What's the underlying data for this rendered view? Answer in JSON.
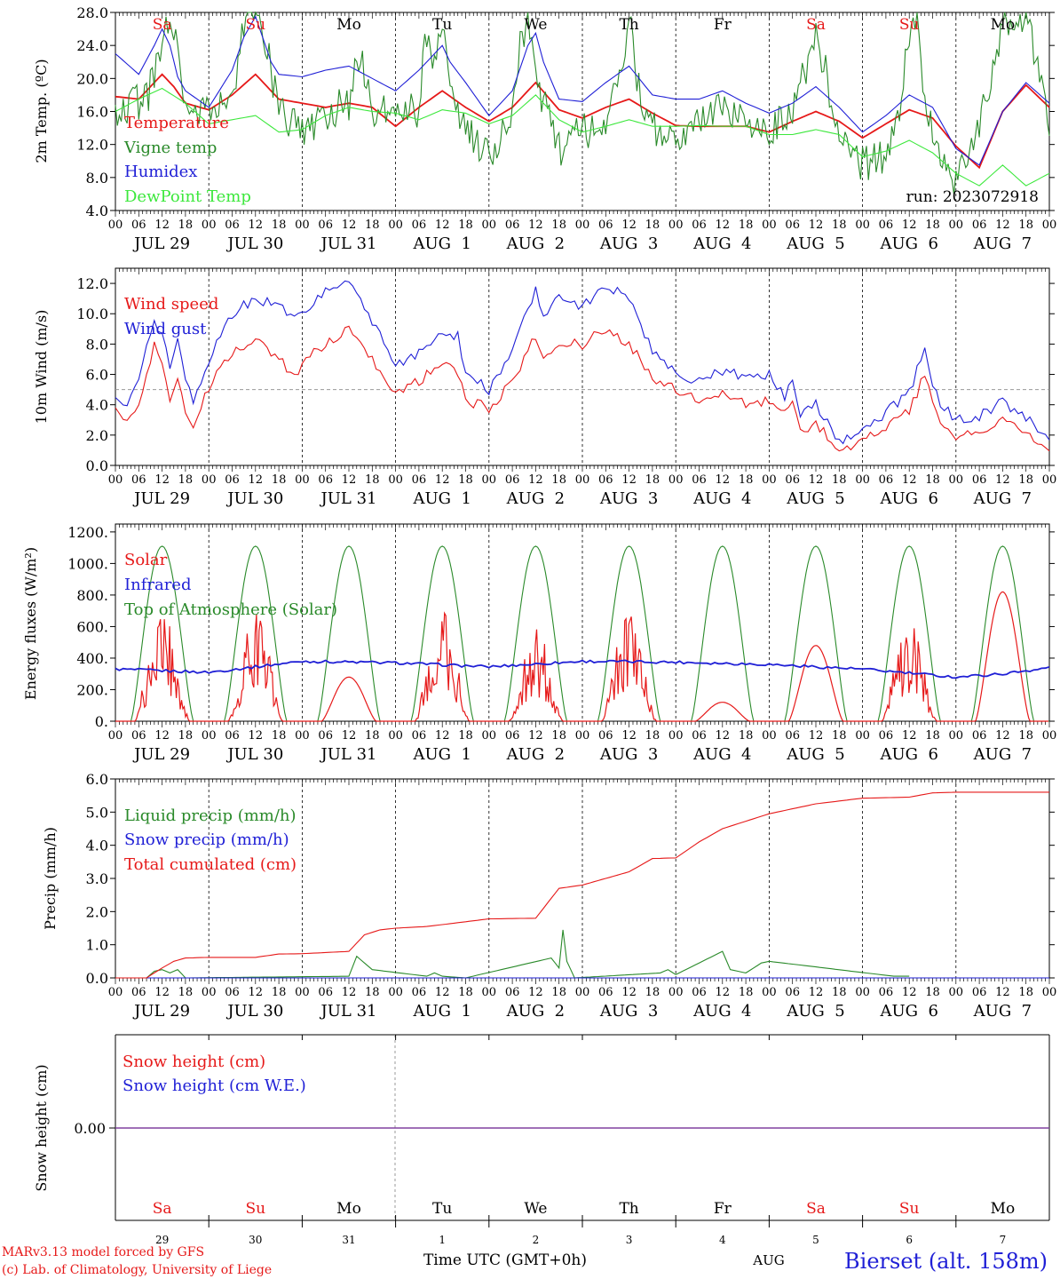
{
  "days": [
    "JUL 29",
    "JUL 30",
    "JUL 31",
    "AUG  1",
    "AUG  2",
    "AUG  3",
    "AUG  4",
    "AUG  5",
    "AUG  6",
    "AUG  7"
  ],
  "weekdays": [
    "Sa",
    "Su",
    "Mo",
    "Tu",
    "We",
    "Th",
    "Fr",
    "Sa",
    "Su",
    "Mo"
  ],
  "day_numbers": [
    "29",
    "30",
    "31",
    "1",
    "2",
    "3",
    "4",
    "5",
    "6",
    "7"
  ],
  "hour_ticks": [
    "00",
    "06",
    "12",
    "18"
  ],
  "hour_end": "00",
  "run_label": "run: 2023072918",
  "footer": {
    "credit_1": "MARv3.13 model forced by GFS",
    "credit_2": "(c) Lab. of Climatology, University of Liege",
    "xlabel": "Time UTC (GMT+0h)",
    "month": "AUG",
    "station": "Bierset (alt. 158m)"
  },
  "colors": {
    "red": "#e61919",
    "green": "#2a8a2a",
    "blue": "#1f1fd6",
    "light_green": "#3ce83c",
    "snow": "#8040a0"
  },
  "chart_data": [
    {
      "type": "line",
      "ylabel": "2m Temp. (ºC)",
      "ylim": [
        4,
        28
      ],
      "yticks": [
        "4.0",
        "8.0",
        "12.0",
        "16.0",
        "20.0",
        "24.0",
        "28.0"
      ],
      "x_unit": "hours since JUL 29 00 UTC",
      "series": [
        {
          "name": "Temperature",
          "x": [
            0,
            6,
            12,
            15,
            18,
            24,
            30,
            36,
            42,
            48,
            54,
            60,
            66,
            72,
            78,
            84,
            90,
            96,
            102,
            108,
            114,
            120,
            126,
            132,
            138,
            144,
            150,
            156,
            162,
            168,
            174,
            180,
            186,
            192,
            198,
            204,
            210,
            216,
            222,
            228,
            234,
            240
          ],
          "values": [
            17.8,
            17.5,
            20.5,
            19,
            17,
            16.2,
            18,
            20.5,
            17.5,
            17,
            16.5,
            17,
            16.5,
            14.2,
            16.5,
            18.5,
            16.5,
            14.8,
            16.5,
            19.5,
            16.2,
            15.2,
            16.5,
            17.5,
            15.8,
            14.3,
            14.2,
            14.2,
            14.2,
            13.5,
            14.8,
            16,
            14.8,
            12.8,
            14.5,
            16.2,
            15.2,
            11.8,
            9.2,
            16,
            19.2,
            16.5
          ]
        },
        {
          "name": "Vigne temp",
          "x": [
            0,
            8,
            11,
            13,
            14,
            16,
            18,
            24,
            30,
            33,
            35,
            38,
            42,
            48,
            54,
            60,
            62,
            64,
            66,
            72,
            78,
            80,
            82,
            84,
            86,
            88,
            90,
            96,
            102,
            104,
            106,
            108,
            110,
            114,
            120,
            126,
            130,
            132,
            134,
            136,
            138,
            144,
            150,
            156,
            162,
            168,
            174,
            178,
            180,
            182,
            186,
            192,
            198,
            202,
            204,
            206,
            208,
            212,
            216,
            222,
            228,
            234,
            240
          ],
          "values": [
            16.2,
            17.5,
            22,
            26,
            27,
            24,
            16.2,
            16,
            18,
            26,
            29,
            26,
            15.8,
            13.5,
            15.8,
            17,
            22,
            21,
            16,
            15.5,
            16.2,
            26,
            22,
            28,
            18,
            16.2,
            14,
            10.2,
            15.8,
            24,
            27,
            20,
            17,
            11.5,
            13.5,
            14.5,
            20,
            28,
            20,
            16,
            14,
            13,
            14.5,
            16.5,
            14.8,
            13.5,
            15.8,
            22,
            25,
            22,
            13,
            9.5,
            10.5,
            17,
            26,
            27,
            17,
            11.5,
            7,
            14,
            27,
            28,
            14.5
          ]
        },
        {
          "name": "Humidex",
          "x": [
            0,
            6,
            10,
            12,
            14,
            16,
            18,
            24,
            30,
            33,
            36,
            40,
            42,
            48,
            54,
            60,
            66,
            72,
            78,
            82,
            84,
            86,
            90,
            96,
            102,
            106,
            108,
            110,
            114,
            120,
            126,
            132,
            138,
            144,
            150,
            156,
            162,
            168,
            174,
            180,
            186,
            192,
            198,
            204,
            210,
            216,
            222,
            228,
            234,
            240
          ],
          "values": [
            23,
            20.5,
            24,
            26,
            24,
            20.2,
            18.5,
            16.5,
            21,
            25,
            27.5,
            22,
            20.5,
            20.2,
            21,
            21.5,
            20,
            18.5,
            21,
            23,
            24,
            22,
            19.5,
            15.5,
            18.5,
            24,
            25.5,
            22,
            17.5,
            17.2,
            19.5,
            21.5,
            18,
            17.5,
            17.5,
            18.5,
            17,
            15.8,
            17,
            19,
            16.5,
            13.5,
            15.5,
            18,
            16.5,
            11.5,
            9.5,
            16,
            19.5,
            17
          ]
        },
        {
          "name": "DewPoint Temp",
          "x": [
            0,
            6,
            12,
            18,
            24,
            30,
            36,
            42,
            48,
            54,
            60,
            66,
            72,
            78,
            84,
            90,
            96,
            102,
            108,
            114,
            120,
            126,
            132,
            138,
            144,
            150,
            156,
            162,
            168,
            174,
            180,
            186,
            192,
            198,
            204,
            210,
            216,
            222,
            228,
            234,
            240
          ],
          "values": [
            16,
            17.5,
            18.8,
            17,
            14.5,
            15,
            15.5,
            13.5,
            13.8,
            15.5,
            16.5,
            16,
            15.8,
            15,
            16.2,
            15.8,
            14.5,
            15.5,
            18,
            15,
            13.5,
            14.2,
            15,
            14.2,
            14.2,
            14.3,
            14.2,
            14.2,
            13.2,
            13.2,
            13.8,
            13.2,
            10.5,
            11.2,
            12.5,
            11,
            8.5,
            7,
            9.5,
            7,
            8.5
          ]
        }
      ]
    },
    {
      "type": "line",
      "ylabel": "10m Wind (m/s)",
      "ylim": [
        0,
        13
      ],
      "yticks": [
        "0.0",
        "2.0",
        "4.0",
        "6.0",
        "8.0",
        "10.0",
        "12.0"
      ],
      "reference_line": 5,
      "series": [
        {
          "name": "Wind speed",
          "x": [
            0,
            3,
            6,
            10,
            12,
            14,
            16,
            18,
            20,
            24,
            30,
            36,
            42,
            46,
            48,
            54,
            60,
            66,
            70,
            72,
            78,
            84,
            88,
            90,
            96,
            102,
            108,
            110,
            114,
            120,
            126,
            132,
            138,
            144,
            150,
            156,
            162,
            168,
            172,
            174,
            176,
            180,
            186,
            192,
            198,
            204,
            208,
            210,
            212,
            216,
            222,
            228,
            234,
            240
          ],
          "values": [
            3.5,
            2.8,
            4.2,
            7.8,
            6.5,
            4.5,
            5.8,
            3.8,
            2.8,
            5.2,
            7.5,
            8.2,
            7,
            5.8,
            6.8,
            8,
            9,
            7,
            5.5,
            4.8,
            5.5,
            7,
            6,
            4.2,
            3.8,
            5.5,
            8.5,
            7.2,
            8,
            8,
            9,
            8,
            5.8,
            5,
            4.2,
            4.8,
            4,
            4.2,
            3.5,
            4.2,
            2.2,
            2.8,
            1,
            1.5,
            2.6,
            3.5,
            6,
            4,
            3,
            2,
            2.2,
            3.2,
            2.2,
            1
          ]
        },
        {
          "name": "Wind gust",
          "x": [
            0,
            3,
            6,
            10,
            12,
            14,
            16,
            18,
            20,
            24,
            30,
            36,
            42,
            46,
            48,
            54,
            60,
            66,
            70,
            72,
            78,
            84,
            88,
            90,
            96,
            102,
            108,
            110,
            114,
            120,
            126,
            132,
            138,
            144,
            150,
            156,
            162,
            168,
            172,
            174,
            176,
            180,
            186,
            192,
            198,
            204,
            208,
            210,
            212,
            216,
            222,
            228,
            234,
            240
          ],
          "values": [
            4.5,
            3.8,
            5.5,
            9.8,
            8.5,
            6.5,
            8.5,
            5.5,
            4.2,
            7,
            10,
            11,
            10.5,
            9.5,
            10,
            11.5,
            12,
            9.5,
            7.5,
            6.5,
            7.5,
            9,
            8.5,
            6,
            5,
            7.5,
            11.5,
            10,
            11,
            10.5,
            11.8,
            11,
            7.5,
            6.2,
            5.5,
            6.2,
            5.8,
            6,
            4.5,
            5.5,
            3.2,
            4,
            1.5,
            2.2,
            3.5,
            4.8,
            7.8,
            5.5,
            4,
            3,
            3.2,
            4.2,
            3.2,
            1.5
          ]
        }
      ]
    },
    {
      "type": "line",
      "ylabel": "Energy fluxes (W/m²)",
      "ylim": [
        0,
        1250
      ],
      "yticks": [
        "0.",
        "200.",
        "400.",
        "600.",
        "800.",
        "1000.",
        "1200."
      ],
      "series": [
        {
          "name": "Solar",
          "day_peaks": [
            720,
            700,
            280,
            700,
            600,
            700,
            120,
            480,
            650,
            820
          ],
          "clouded_days": [
            0,
            1,
            3,
            4,
            5,
            8
          ]
        },
        {
          "name": "Infrared",
          "x": [
            0,
            24,
            48,
            72,
            96,
            120,
            144,
            168,
            192,
            216,
            228,
            240
          ],
          "values": [
            330,
            310,
            380,
            370,
            345,
            380,
            375,
            360,
            330,
            280,
            300,
            340
          ]
        },
        {
          "name": "Top of Atmosphere (Solar)",
          "day_peak": 1110,
          "sunrise_hour": 4,
          "sunset_hour": 20
        }
      ]
    },
    {
      "type": "line",
      "ylabel": "Precip (mm/h)",
      "ylim": [
        0,
        6
      ],
      "yticks": [
        "0.0",
        "1.0",
        "2.0",
        "3.0",
        "4.0",
        "5.0",
        "6.0"
      ],
      "series": [
        {
          "name": "Liquid precip (mm/h)",
          "x": [
            8,
            10,
            12,
            14,
            16,
            18,
            60,
            62,
            66,
            80,
            82,
            84,
            90,
            112,
            114,
            115,
            116,
            118,
            140,
            142,
            144,
            156,
            158,
            162,
            166,
            168,
            200,
            204
          ],
          "values": [
            0,
            0.2,
            0.25,
            0.15,
            0.25,
            0,
            0.05,
            0.65,
            0.25,
            0.05,
            0.15,
            0.05,
            0,
            0.6,
            0.3,
            1.45,
            0.5,
            0,
            0.15,
            0.25,
            0.1,
            0.8,
            0.25,
            0.15,
            0.45,
            0.5,
            0.05,
            0.05
          ]
        },
        {
          "name": "Snow precip (mm/h)",
          "x": [
            0,
            240
          ],
          "values": [
            0,
            0
          ]
        },
        {
          "name": "Total cumulated (cm)",
          "x": [
            0,
            8,
            12,
            15,
            18,
            24,
            36,
            42,
            48,
            60,
            64,
            68,
            72,
            80,
            96,
            108,
            110,
            114,
            120,
            132,
            138,
            144,
            150,
            156,
            168,
            180,
            192,
            204,
            210,
            216,
            228,
            240
          ],
          "values": [
            0,
            0,
            0.3,
            0.5,
            0.6,
            0.62,
            0.62,
            0.72,
            0.73,
            0.8,
            1.3,
            1.45,
            1.5,
            1.55,
            1.78,
            1.8,
            2.1,
            2.7,
            2.8,
            3.2,
            3.6,
            3.62,
            4.1,
            4.5,
            4.95,
            5.25,
            5.42,
            5.45,
            5.58,
            5.6,
            5.6,
            5.6
          ]
        }
      ]
    },
    {
      "type": "line",
      "ylabel": "Snow height (cm)",
      "ylim": [
        -1,
        1
      ],
      "yticks": [
        "0.00"
      ],
      "series": [
        {
          "name": "Snow height (cm)",
          "x": [
            0,
            240
          ],
          "values": [
            0,
            0
          ]
        },
        {
          "name": "Snow height (cm W.E.)",
          "x": [
            0,
            240
          ],
          "values": [
            0,
            0
          ]
        }
      ]
    }
  ]
}
